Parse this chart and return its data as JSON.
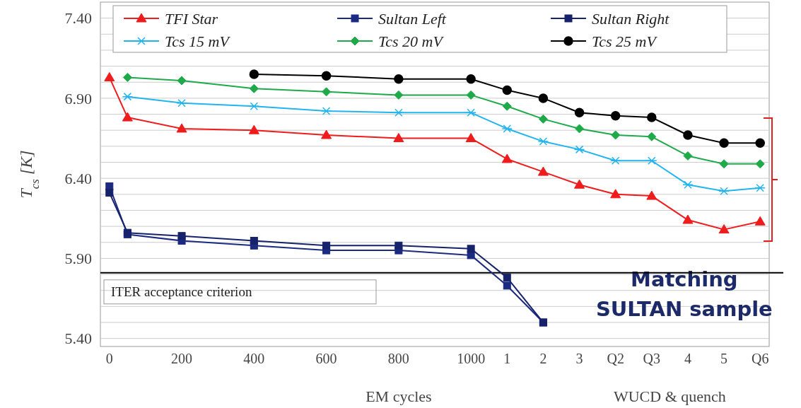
{
  "chart_data": {
    "type": "line",
    "ylabel": "T$_{cs}$ [K]",
    "xlabel": "EM cycles",
    "annotations": [
      "WUCD & quench",
      "Matching SULTAN sample"
    ],
    "categories": [
      "0",
      null,
      null,
      null,
      "200",
      null,
      null,
      null,
      "400",
      null,
      null,
      null,
      "600",
      null,
      null,
      null,
      "800",
      null,
      null,
      null,
      "1000",
      null,
      "1",
      null,
      "2",
      null,
      "3",
      null,
      "Q2",
      null,
      "Q3",
      null,
      "4",
      null,
      "5",
      null,
      "Q6"
    ],
    "ylim": [
      5.35,
      7.5
    ],
    "yticks": [
      {
        "value": 5.4,
        "label": "5.40"
      },
      {
        "value": 5.5,
        "label": null
      },
      {
        "value": 5.6,
        "label": null
      },
      {
        "value": 5.7,
        "label": null
      },
      {
        "value": 5.8,
        "label": null
      },
      {
        "value": 5.9,
        "label": "5.90"
      },
      {
        "value": 6.0,
        "label": null
      },
      {
        "value": 6.1,
        "label": null
      },
      {
        "value": 6.2,
        "label": null
      },
      {
        "value": 6.3,
        "label": null
      },
      {
        "value": 6.4,
        "label": "6.40"
      },
      {
        "value": 6.5,
        "label": null
      },
      {
        "value": 6.6,
        "label": null
      },
      {
        "value": 6.7,
        "label": null
      },
      {
        "value": 6.8,
        "label": null
      },
      {
        "value": 6.9,
        "label": "6.90"
      },
      {
        "value": 7.0,
        "label": null
      },
      {
        "value": 7.1,
        "label": null
      },
      {
        "value": 7.2,
        "label": null
      },
      {
        "value": 7.3,
        "label": null
      },
      {
        "value": 7.4,
        "label": "7.40"
      }
    ],
    "grid": "y",
    "legend": "top",
    "ref_lines": [
      {
        "axis": "y",
        "value": 5.81,
        "label": "ITER acceptance criterion",
        "color": "#000000"
      }
    ],
    "series": [
      {
        "name": "TFI Star",
        "color": "#ee1c1c",
        "marker": "triangle",
        "values": [
          7.03,
          6.78,
          null,
          null,
          6.71,
          null,
          null,
          null,
          6.7,
          null,
          null,
          null,
          6.67,
          null,
          null,
          null,
          6.65,
          null,
          null,
          null,
          6.65,
          null,
          6.52,
          null,
          6.44,
          null,
          6.36,
          null,
          6.3,
          null,
          6.29,
          null,
          6.14,
          null,
          6.08,
          null,
          6.13
        ]
      },
      {
        "name": "Sultan Left",
        "color": "#1c2a80",
        "marker": "square",
        "values": [
          6.35,
          6.05,
          null,
          null,
          6.01,
          null,
          null,
          null,
          5.98,
          null,
          null,
          null,
          5.95,
          null,
          null,
          null,
          5.95,
          null,
          null,
          null,
          5.92,
          null,
          5.73,
          null,
          5.5,
          null,
          null,
          null,
          null,
          null,
          null,
          null,
          null,
          null,
          null,
          null,
          null
        ]
      },
      {
        "name": "Sultan Right",
        "color": "#16236b",
        "marker": "square",
        "values": [
          6.31,
          6.06,
          null,
          null,
          6.04,
          null,
          null,
          null,
          6.01,
          null,
          null,
          null,
          5.98,
          null,
          null,
          null,
          5.98,
          null,
          null,
          null,
          5.96,
          null,
          5.78,
          null,
          5.5,
          null,
          null,
          null,
          null,
          null,
          null,
          null,
          null,
          null,
          null,
          null,
          null
        ]
      },
      {
        "name": "Tcs 15 mV",
        "color": "#22b4ee",
        "marker": "cross",
        "values": [
          null,
          6.91,
          null,
          null,
          6.87,
          null,
          null,
          null,
          6.85,
          null,
          null,
          null,
          6.82,
          null,
          null,
          null,
          6.81,
          null,
          null,
          null,
          6.81,
          null,
          6.71,
          null,
          6.63,
          null,
          6.58,
          null,
          6.51,
          null,
          6.51,
          null,
          6.36,
          null,
          6.32,
          null,
          6.34
        ]
      },
      {
        "name": "Tcs 20 mV",
        "color": "#1faa4a",
        "marker": "diamond",
        "values": [
          null,
          7.03,
          null,
          null,
          7.01,
          null,
          null,
          null,
          6.96,
          null,
          null,
          null,
          6.94,
          null,
          null,
          null,
          6.92,
          null,
          null,
          null,
          6.92,
          null,
          6.85,
          null,
          6.77,
          null,
          6.71,
          null,
          6.67,
          null,
          6.66,
          null,
          6.54,
          null,
          6.49,
          null,
          6.49
        ]
      },
      {
        "name": "Tcs 25 mV",
        "color": "#000000",
        "marker": "circle",
        "values": [
          null,
          null,
          null,
          null,
          null,
          null,
          null,
          null,
          7.05,
          null,
          null,
          null,
          7.04,
          null,
          null,
          null,
          7.02,
          null,
          null,
          null,
          7.02,
          null,
          6.95,
          null,
          6.9,
          null,
          6.81,
          null,
          6.79,
          null,
          6.78,
          null,
          6.67,
          null,
          6.62,
          null,
          6.62
        ]
      }
    ]
  }
}
